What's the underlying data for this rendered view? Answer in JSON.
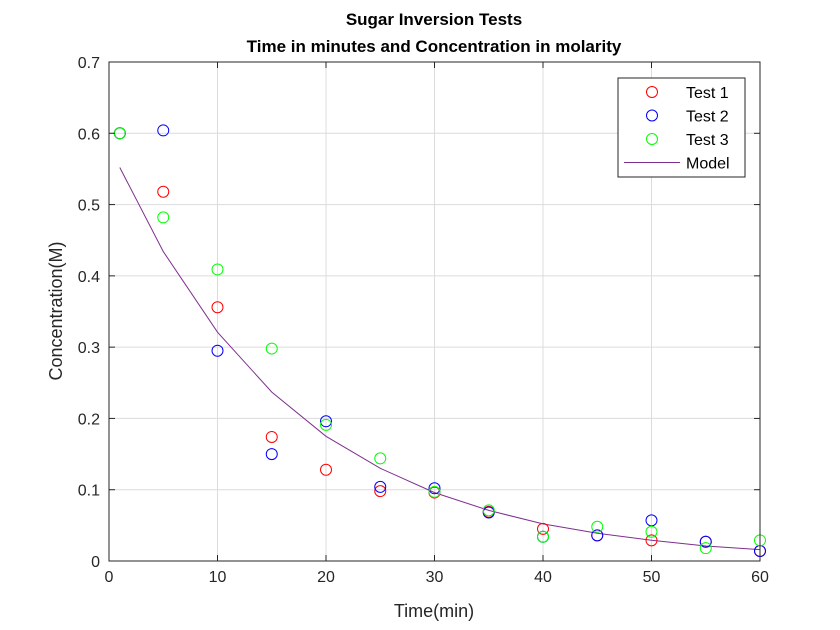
{
  "chart_data": {
    "type": "scatter",
    "title": "Sugar Inversion Tests",
    "subtitle": "Time in minutes and Concentration in molarity",
    "xlabel": "Time(min)",
    "ylabel": "Concentration(M)",
    "xlim": [
      0,
      60
    ],
    "ylim": [
      0,
      0.7
    ],
    "xticks": [
      0,
      10,
      20,
      30,
      40,
      50,
      60
    ],
    "yticks": [
      0,
      0.1,
      0.2,
      0.3,
      0.4,
      0.5,
      0.6,
      0.7
    ],
    "xtick_labels": [
      "0",
      "10",
      "20",
      "30",
      "40",
      "50",
      "60"
    ],
    "ytick_labels": [
      "0",
      "0.1",
      "0.2",
      "0.3",
      "0.4",
      "0.5",
      "0.6",
      "0.7"
    ],
    "grid": true,
    "legend_position": "top-right",
    "series": [
      {
        "name": "Test 1",
        "kind": "marker",
        "marker": "circle",
        "color": "#ff0000",
        "x": [
          1,
          5,
          10,
          15,
          20,
          25,
          30,
          35,
          40,
          45,
          50,
          55,
          60
        ],
        "y": [
          0.6,
          0.518,
          0.356,
          0.174,
          0.128,
          0.098,
          0.096,
          0.069,
          0.045,
          0.036,
          0.029,
          0.027,
          0.014
        ]
      },
      {
        "name": "Test 2",
        "kind": "marker",
        "marker": "circle",
        "color": "#0000ff",
        "x": [
          1,
          5,
          10,
          15,
          20,
          25,
          30,
          35,
          40,
          45,
          50,
          55,
          60
        ],
        "y": [
          0.6,
          0.604,
          0.295,
          0.15,
          0.196,
          0.104,
          0.102,
          0.068,
          0.034,
          0.036,
          0.057,
          0.027,
          0.014
        ]
      },
      {
        "name": "Test 3",
        "kind": "marker",
        "marker": "circle",
        "color": "#00ff00",
        "x": [
          1,
          5,
          10,
          15,
          20,
          25,
          30,
          35,
          40,
          45,
          50,
          55,
          60
        ],
        "y": [
          0.6,
          0.482,
          0.409,
          0.298,
          0.191,
          0.144,
          0.097,
          0.071,
          0.034,
          0.048,
          0.041,
          0.018,
          0.029
        ]
      },
      {
        "name": "Model",
        "kind": "line",
        "color": "#7e2f8e",
        "x": [
          1,
          5,
          10,
          15,
          20,
          25,
          30,
          35,
          40,
          45,
          50,
          55,
          60
        ],
        "y": [
          0.552,
          0.434,
          0.321,
          0.237,
          0.175,
          0.13,
          0.096,
          0.071,
          0.052,
          0.039,
          0.029,
          0.021,
          0.016
        ]
      }
    ]
  }
}
